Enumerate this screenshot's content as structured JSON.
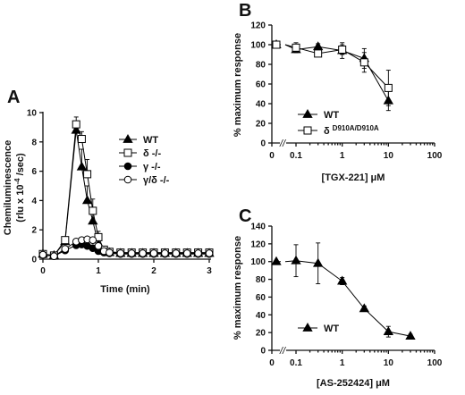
{
  "chart_data": [
    {
      "panel": "A",
      "type": "line",
      "ylabel": "Chemiluminescence (rlu x 10-4 /sec)",
      "xlabel": "Time   (min)",
      "xlim": [
        0,
        3
      ],
      "ylim": [
        0,
        10
      ],
      "x_ticks": [
        0,
        1,
        2,
        3
      ],
      "y_ticks": [
        0,
        2,
        4,
        6,
        8,
        10
      ],
      "legend_position": "right",
      "x": [
        0,
        0.2,
        0.4,
        0.6,
        0.7,
        0.8,
        0.9,
        1.0,
        1.1,
        1.2,
        1.4,
        1.6,
        1.8,
        2.0,
        2.2,
        2.4,
        2.6,
        2.8,
        3.0
      ],
      "series": [
        {
          "name": "WT",
          "marker": "triangle-filled",
          "values": [
            0.35,
            0.25,
            1.2,
            8.8,
            6.3,
            4.0,
            2.6,
            1.0,
            0.55,
            0.45,
            0.4,
            0.4,
            0.4,
            0.4,
            0.4,
            0.4,
            0.4,
            0.4,
            0.4
          ],
          "errors": [
            0.1,
            0.1,
            0.2,
            0.5,
            1.2,
            1.0,
            0.6,
            0.3,
            0.2,
            0.2,
            0.2,
            0.2,
            0.2,
            0.2,
            0.2,
            0.2,
            0.2,
            0.2,
            0.2
          ]
        },
        {
          "name": "δ -/-",
          "marker": "square-open",
          "values": [
            0.35,
            0.25,
            1.3,
            9.2,
            8.2,
            5.8,
            3.3,
            1.5,
            0.65,
            0.5,
            0.45,
            0.45,
            0.45,
            0.45,
            0.45,
            0.45,
            0.45,
            0.45,
            0.45
          ],
          "errors": [
            0.1,
            0.1,
            0.2,
            0.5,
            0.5,
            1.0,
            0.8,
            0.4,
            0.2,
            0.2,
            0.2,
            0.2,
            0.2,
            0.2,
            0.2,
            0.2,
            0.2,
            0.2,
            0.2
          ]
        },
        {
          "name": "γ -/-",
          "marker": "circle-filled",
          "values": [
            0.3,
            0.2,
            0.6,
            0.95,
            1.0,
            0.9,
            0.75,
            0.55,
            0.45,
            0.4,
            0.35,
            0.35,
            0.35,
            0.35,
            0.35,
            0.35,
            0.35,
            0.35,
            0.35
          ],
          "errors": [
            0.1,
            0.1,
            0.1,
            0.15,
            0.15,
            0.15,
            0.15,
            0.1,
            0.1,
            0.1,
            0.1,
            0.1,
            0.1,
            0.1,
            0.1,
            0.1,
            0.1,
            0.1,
            0.1
          ]
        },
        {
          "name": "γ/δ -/-",
          "marker": "circle-open",
          "values": [
            0.3,
            0.2,
            0.7,
            1.2,
            1.3,
            1.35,
            1.3,
            0.9,
            0.55,
            0.45,
            0.4,
            0.4,
            0.4,
            0.4,
            0.4,
            0.4,
            0.4,
            0.4,
            0.4
          ],
          "errors": [
            0.1,
            0.1,
            0.1,
            0.15,
            0.15,
            0.15,
            0.15,
            0.1,
            0.1,
            0.1,
            0.1,
            0.1,
            0.1,
            0.1,
            0.1,
            0.1,
            0.1,
            0.1,
            0.1
          ]
        }
      ]
    },
    {
      "panel": "B",
      "type": "line",
      "ylabel": "% maximum response",
      "xlabel": "[TGX-221] μM",
      "x_scale": "log",
      "x_break": true,
      "xlim": [
        0.03,
        100
      ],
      "ylim": [
        0,
        120
      ],
      "x_ticks": [
        0,
        0.1,
        1,
        10,
        100
      ],
      "y_ticks": [
        0,
        20,
        40,
        60,
        80,
        100,
        120
      ],
      "legend_position": "lower-left",
      "x": [
        0,
        0.1,
        0.3,
        1,
        3,
        10
      ],
      "series": [
        {
          "name": "WT",
          "marker": "triangle-filled",
          "values": [
            100,
            95,
            98,
            94,
            86,
            43
          ],
          "errors": [
            0,
            3,
            3,
            8,
            10,
            10
          ]
        },
        {
          "name": "δ D910A/D910A",
          "marker": "square-open",
          "values": [
            100,
            97,
            91,
            95,
            82,
            56
          ],
          "errors": [
            0,
            5,
            3,
            5,
            10,
            18
          ]
        }
      ]
    },
    {
      "panel": "C",
      "type": "line",
      "ylabel": "% maximum response",
      "xlabel": "[AS-252424] μM",
      "x_scale": "log",
      "x_break": true,
      "xlim": [
        0.03,
        100
      ],
      "ylim": [
        0,
        140
      ],
      "x_ticks": [
        0,
        0.1,
        1,
        10,
        100
      ],
      "y_ticks": [
        0,
        20,
        40,
        60,
        80,
        100,
        120,
        140
      ],
      "legend_position": "lower-left",
      "x": [
        0,
        0.1,
        0.3,
        1,
        3,
        10,
        30
      ],
      "series": [
        {
          "name": "WT",
          "marker": "triangle-filled",
          "values": [
            100,
            101,
            98,
            78,
            47,
            21,
            16
          ],
          "errors": [
            0,
            18,
            23,
            4,
            3,
            6,
            2
          ]
        }
      ]
    }
  ],
  "panels": {
    "A": {
      "letter": "A",
      "ylabel_line1": "Chemiluminescence",
      "ylabel_line2_prefix": "(rlu x 10",
      "ylabel_line2_exp": "-4",
      "ylabel_line2_suffix": " /sec)",
      "xlabel": "Time   (min)",
      "legend": [
        "WT",
        "δ -/-",
        "γ -/-",
        "γ/δ -/-"
      ]
    },
    "B": {
      "letter": "B",
      "ylabel": "% maximum response",
      "xlabel_main": "[TGX-221] ",
      "xlabel_unit": "μM",
      "legend_wt": "WT",
      "legend_delta": "δ",
      "legend_delta_sup": "D910A/D910A"
    },
    "C": {
      "letter": "C",
      "ylabel": "% maximum response",
      "xlabel_main": "[AS-252424] ",
      "xlabel_unit": "μM",
      "legend_wt": "WT"
    },
    "break_mark": "//"
  }
}
